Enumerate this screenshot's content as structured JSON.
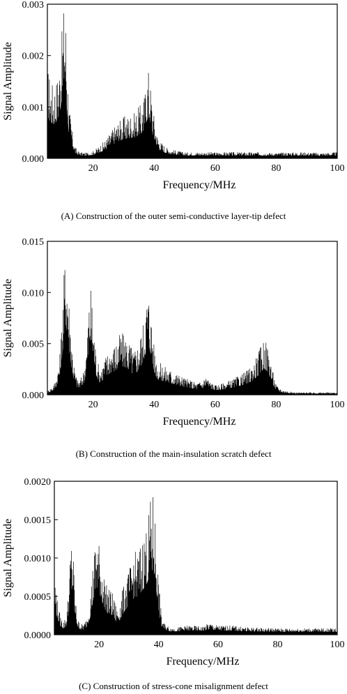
{
  "chart_data": [
    {
      "type": "area",
      "caption": "(A) Construction of the outer semi-conductive layer-tip defect",
      "xlabel": "Frequency/MHz",
      "ylabel": "Signal Amplitude",
      "xlim": [
        5,
        100
      ],
      "ylim": [
        0,
        0.003
      ],
      "xticks": [
        20,
        40,
        60,
        80,
        100
      ],
      "yticks": [
        "0.000",
        "0.001",
        "0.002",
        "0.003"
      ],
      "series": [
        {
          "x": [
            5,
            6,
            7,
            8,
            9,
            10,
            10.5,
            11,
            11.5,
            12,
            13,
            14,
            15,
            16,
            18,
            20,
            22,
            24,
            26,
            28,
            30,
            32,
            34,
            35,
            36,
            37,
            38,
            38.5,
            39,
            40,
            41,
            42,
            44,
            46,
            48,
            50,
            55,
            60,
            65,
            70,
            75,
            80,
            85,
            90,
            95,
            100
          ],
          "y": [
            0.0015,
            0.0013,
            0.0012,
            0.0013,
            0.0016,
            0.0022,
            0.0027,
            0.0024,
            0.0016,
            0.0009,
            0.0005,
            0.0002,
            0.00012,
            0.0001,
            9e-05,
            0.00012,
            0.0002,
            0.0003,
            0.00045,
            0.0006,
            0.00068,
            0.00072,
            0.00075,
            0.00085,
            0.0009,
            0.0011,
            0.0015,
            0.0014,
            0.0011,
            0.0007,
            0.0004,
            0.00028,
            0.00018,
            0.00014,
            0.00012,
            0.0001,
            0.0001,
            0.0001,
            0.0001,
            0.0001,
            0.0001,
            9e-05,
            0.0001,
            0.0001,
            9e-05,
            0.0001
          ]
        }
      ]
    },
    {
      "type": "area",
      "caption": "(B) Construction of the main-insulation scratch defect",
      "xlabel": "Frequency/MHz",
      "ylabel": "Signal Amplitude",
      "xlim": [
        5,
        100
      ],
      "ylim": [
        0,
        0.015
      ],
      "xticks": [
        20,
        40,
        60,
        80,
        100
      ],
      "yticks": [
        "0.000",
        "0.005",
        "0.010",
        "0.015"
      ],
      "series": [
        {
          "x": [
            5,
            7,
            8,
            9,
            10,
            10.5,
            11,
            11.5,
            12,
            13,
            14,
            15,
            16,
            17,
            18,
            18.5,
            19,
            19.5,
            20,
            21,
            22,
            23,
            24,
            25,
            26,
            27,
            28,
            29,
            30,
            31,
            32,
            33,
            34,
            35,
            36,
            37,
            37.5,
            38,
            38.5,
            39,
            40,
            41,
            42,
            44,
            46,
            48,
            50,
            52,
            54,
            56,
            57,
            58,
            60,
            62,
            64,
            66,
            68,
            70,
            72,
            74,
            75,
            76,
            77,
            78,
            79,
            80,
            82,
            84,
            86,
            90,
            95,
            100
          ],
          "y": [
            0.0003,
            0.0008,
            0.0015,
            0.003,
            0.0075,
            0.0105,
            0.0125,
            0.011,
            0.0085,
            0.0045,
            0.002,
            0.0012,
            0.0014,
            0.0022,
            0.0045,
            0.0075,
            0.0092,
            0.0085,
            0.0065,
            0.0035,
            0.0022,
            0.0025,
            0.0032,
            0.0036,
            0.004,
            0.0042,
            0.0047,
            0.0051,
            0.005,
            0.0048,
            0.0044,
            0.0037,
            0.0038,
            0.0046,
            0.0055,
            0.007,
            0.0082,
            0.0088,
            0.0083,
            0.0068,
            0.004,
            0.0028,
            0.0026,
            0.0023,
            0.002,
            0.0017,
            0.0014,
            0.0012,
            0.001,
            0.0012,
            0.0017,
            0.0012,
            0.0008,
            0.0009,
            0.0011,
            0.0013,
            0.0016,
            0.0019,
            0.0024,
            0.0034,
            0.0041,
            0.0047,
            0.0042,
            0.0032,
            0.0018,
            0.0008,
            0.0004,
            0.0003,
            0.0002,
            0.0002,
            0.0002,
            0.0002
          ]
        }
      ]
    },
    {
      "type": "area",
      "caption": "(C) Construction of stress-cone misalignment defect",
      "xlabel": "Frequency/MHz",
      "ylabel": "Signal Amplitude",
      "xlim": [
        5,
        100
      ],
      "ylim": [
        0,
        0.002
      ],
      "xticks": [
        20,
        40,
        60,
        80,
        100
      ],
      "yticks": [
        "0.0000",
        "0.0005",
        "0.0010",
        "0.0015",
        "0.0020"
      ],
      "series": [
        {
          "x": [
            5,
            6,
            7,
            8,
            9,
            10,
            10.5,
            11,
            11.5,
            12,
            13,
            14,
            15,
            16,
            17,
            18,
            19,
            19.5,
            20,
            21,
            22,
            23,
            24,
            25,
            26,
            27,
            28,
            29,
            30,
            31,
            32,
            33,
            34,
            35,
            36,
            37,
            37.5,
            38,
            38.5,
            39,
            40,
            41,
            42,
            44,
            46,
            48,
            50,
            55,
            57,
            60,
            65,
            70,
            80,
            90,
            100
          ],
          "y": [
            0.0007,
            0.0004,
            0.0002,
            0.00015,
            0.0002,
            0.0006,
            0.001,
            0.0011,
            0.0008,
            0.0004,
            0.00016,
            0.00012,
            0.00012,
            0.0002,
            0.0004,
            0.0008,
            0.0011,
            0.00112,
            0.001,
            0.0008,
            0.0006,
            0.0005,
            0.0005,
            0.0004,
            0.0003,
            0.00035,
            0.0005,
            0.0006,
            0.0007,
            0.0008,
            0.0009,
            0.0009,
            0.001,
            0.0011,
            0.0012,
            0.0014,
            0.0015,
            0.00155,
            0.0015,
            0.0012,
            0.0006,
            0.0002,
            0.00012,
            8e-05,
            8e-05,
            9e-05,
            0.0001,
            9e-05,
            0.00013,
            0.0001,
            0.0001,
            8e-05,
            7e-05,
            7e-05,
            7e-05
          ]
        }
      ]
    }
  ]
}
